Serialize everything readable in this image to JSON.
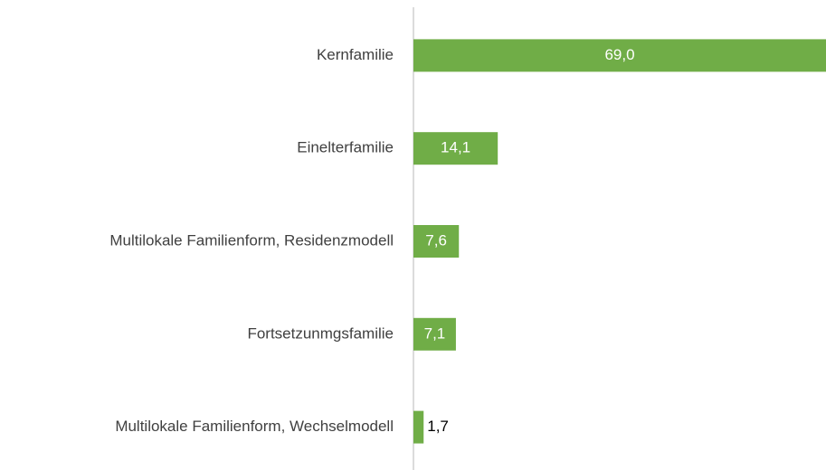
{
  "chart_data": {
    "type": "barh",
    "categories": [
      "Kernfamilie",
      "Einelterfamilie",
      "Multilokale Familienform, Residenzmodell",
      "Fortsetzunmgsfamilie",
      "Multilokale Familienform, Wechselmodell"
    ],
    "values": [
      69.0,
      14.1,
      7.6,
      7.1,
      1.7
    ],
    "value_labels": [
      "69,0",
      "14,1",
      "7,6",
      "7,1",
      "1,7"
    ],
    "color": "#70ad47"
  }
}
